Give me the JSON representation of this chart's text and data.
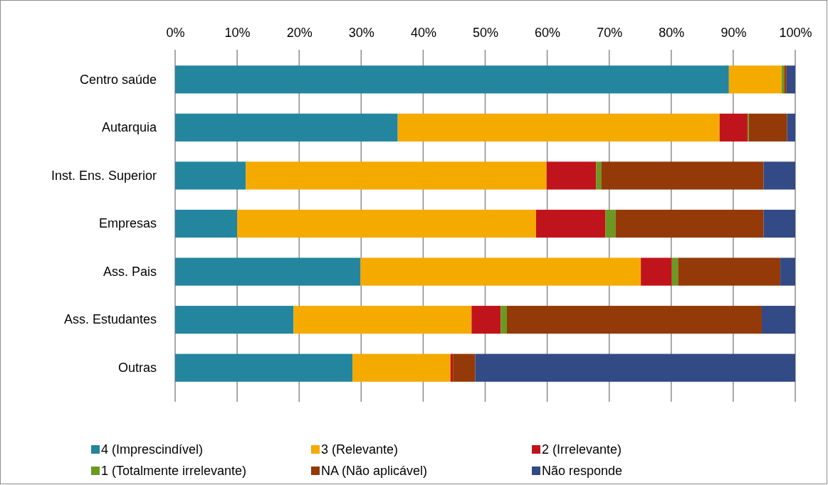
{
  "chart_data": {
    "type": "bar",
    "orientation": "horizontal",
    "stacked": true,
    "categories": [
      "Centro saúde",
      "Autarquia",
      "Inst. Ens. Superior",
      "Empresas",
      "Ass. Pais",
      "Ass. Estudantes",
      "Outras"
    ],
    "series": [
      {
        "name": "4 (Imprescindível)",
        "color": "#23869e",
        "values": [
          89.3,
          35.9,
          11.4,
          10.0,
          29.9,
          19.1,
          28.6
        ]
      },
      {
        "name": "3 (Relevante)",
        "color": "#f5aa00",
        "values": [
          8.5,
          51.9,
          48.5,
          48.2,
          45.2,
          28.7,
          15.8
        ]
      },
      {
        "name": "2 (Irrelevante)",
        "color": "#c0141c",
        "values": [
          0,
          4.5,
          8.0,
          11.2,
          5.0,
          4.7,
          0.4
        ]
      },
      {
        "name": "1 (Totalmente irrelevante)",
        "color": "#6a9a1f",
        "values": [
          0.4,
          0.2,
          0.8,
          1.6,
          1.0,
          1.0,
          0
        ]
      },
      {
        "name": "NA (Não aplicável)",
        "color": "#933a08",
        "values": [
          0.4,
          6.2,
          26.2,
          23.9,
          16.5,
          41.1,
          3.6
        ]
      },
      {
        "name": "Não responde",
        "color": "#324a85",
        "values": [
          1.4,
          1.3,
          5.1,
          5.1,
          2.4,
          5.4,
          51.6
        ]
      }
    ],
    "xlim": [
      0,
      100
    ],
    "xticks": [
      {
        "value": 0,
        "label": "0%"
      },
      {
        "value": 10,
        "label": "10%"
      },
      {
        "value": 20,
        "label": "20%"
      },
      {
        "value": 30,
        "label": "30%"
      },
      {
        "value": 40,
        "label": "40%"
      },
      {
        "value": 50,
        "label": "50%"
      },
      {
        "value": 60,
        "label": "60%"
      },
      {
        "value": 70,
        "label": "70%"
      },
      {
        "value": 80,
        "label": "80%"
      },
      {
        "value": 90,
        "label": "90%"
      },
      {
        "value": 100,
        "label": "100%"
      }
    ],
    "grid": "x",
    "legend": "bottom"
  }
}
